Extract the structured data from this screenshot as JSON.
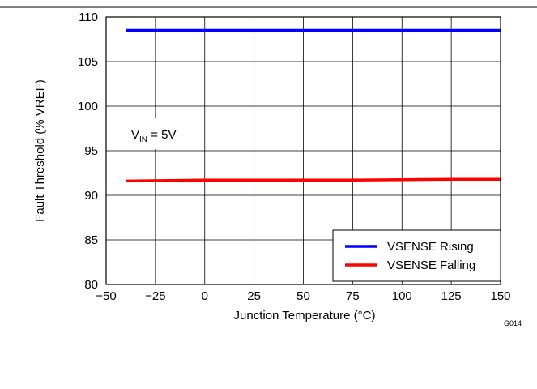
{
  "chart_data": {
    "type": "line",
    "title": "",
    "xlabel": "Junction Temperature (°C)",
    "ylabel": "Fault Threshold (% VREF)",
    "xlim": [
      -50,
      150
    ],
    "ylim": [
      80,
      110
    ],
    "xticks": [
      -50,
      -25,
      0,
      25,
      50,
      75,
      100,
      125,
      150
    ],
    "xtick_labels": [
      "−50",
      "−25",
      "0",
      "25",
      "50",
      "75",
      "100",
      "125",
      "150"
    ],
    "yticks": [
      80,
      85,
      90,
      95,
      100,
      105,
      110
    ],
    "ytick_labels": [
      "80",
      "85",
      "90",
      "95",
      "100",
      "105",
      "110"
    ],
    "grid": true,
    "legend_position": "bottom-right",
    "annotation": {
      "main": "V",
      "sub": "IN",
      "rest": " = 5V"
    },
    "figure_id": "G014",
    "series": [
      {
        "name": "VSENSE Rising",
        "color": "#0000ff",
        "x": [
          -40,
          0,
          25,
          50,
          75,
          100,
          125,
          150
        ],
        "y": [
          108.5,
          108.5,
          108.5,
          108.5,
          108.5,
          108.5,
          108.5,
          108.5
        ]
      },
      {
        "name": "VSENSE Falling",
        "color": "#ff0000",
        "x": [
          -40,
          0,
          25,
          50,
          75,
          100,
          125,
          150
        ],
        "y": [
          91.6,
          91.7,
          91.7,
          91.7,
          91.7,
          91.75,
          91.8,
          91.8
        ]
      }
    ]
  }
}
